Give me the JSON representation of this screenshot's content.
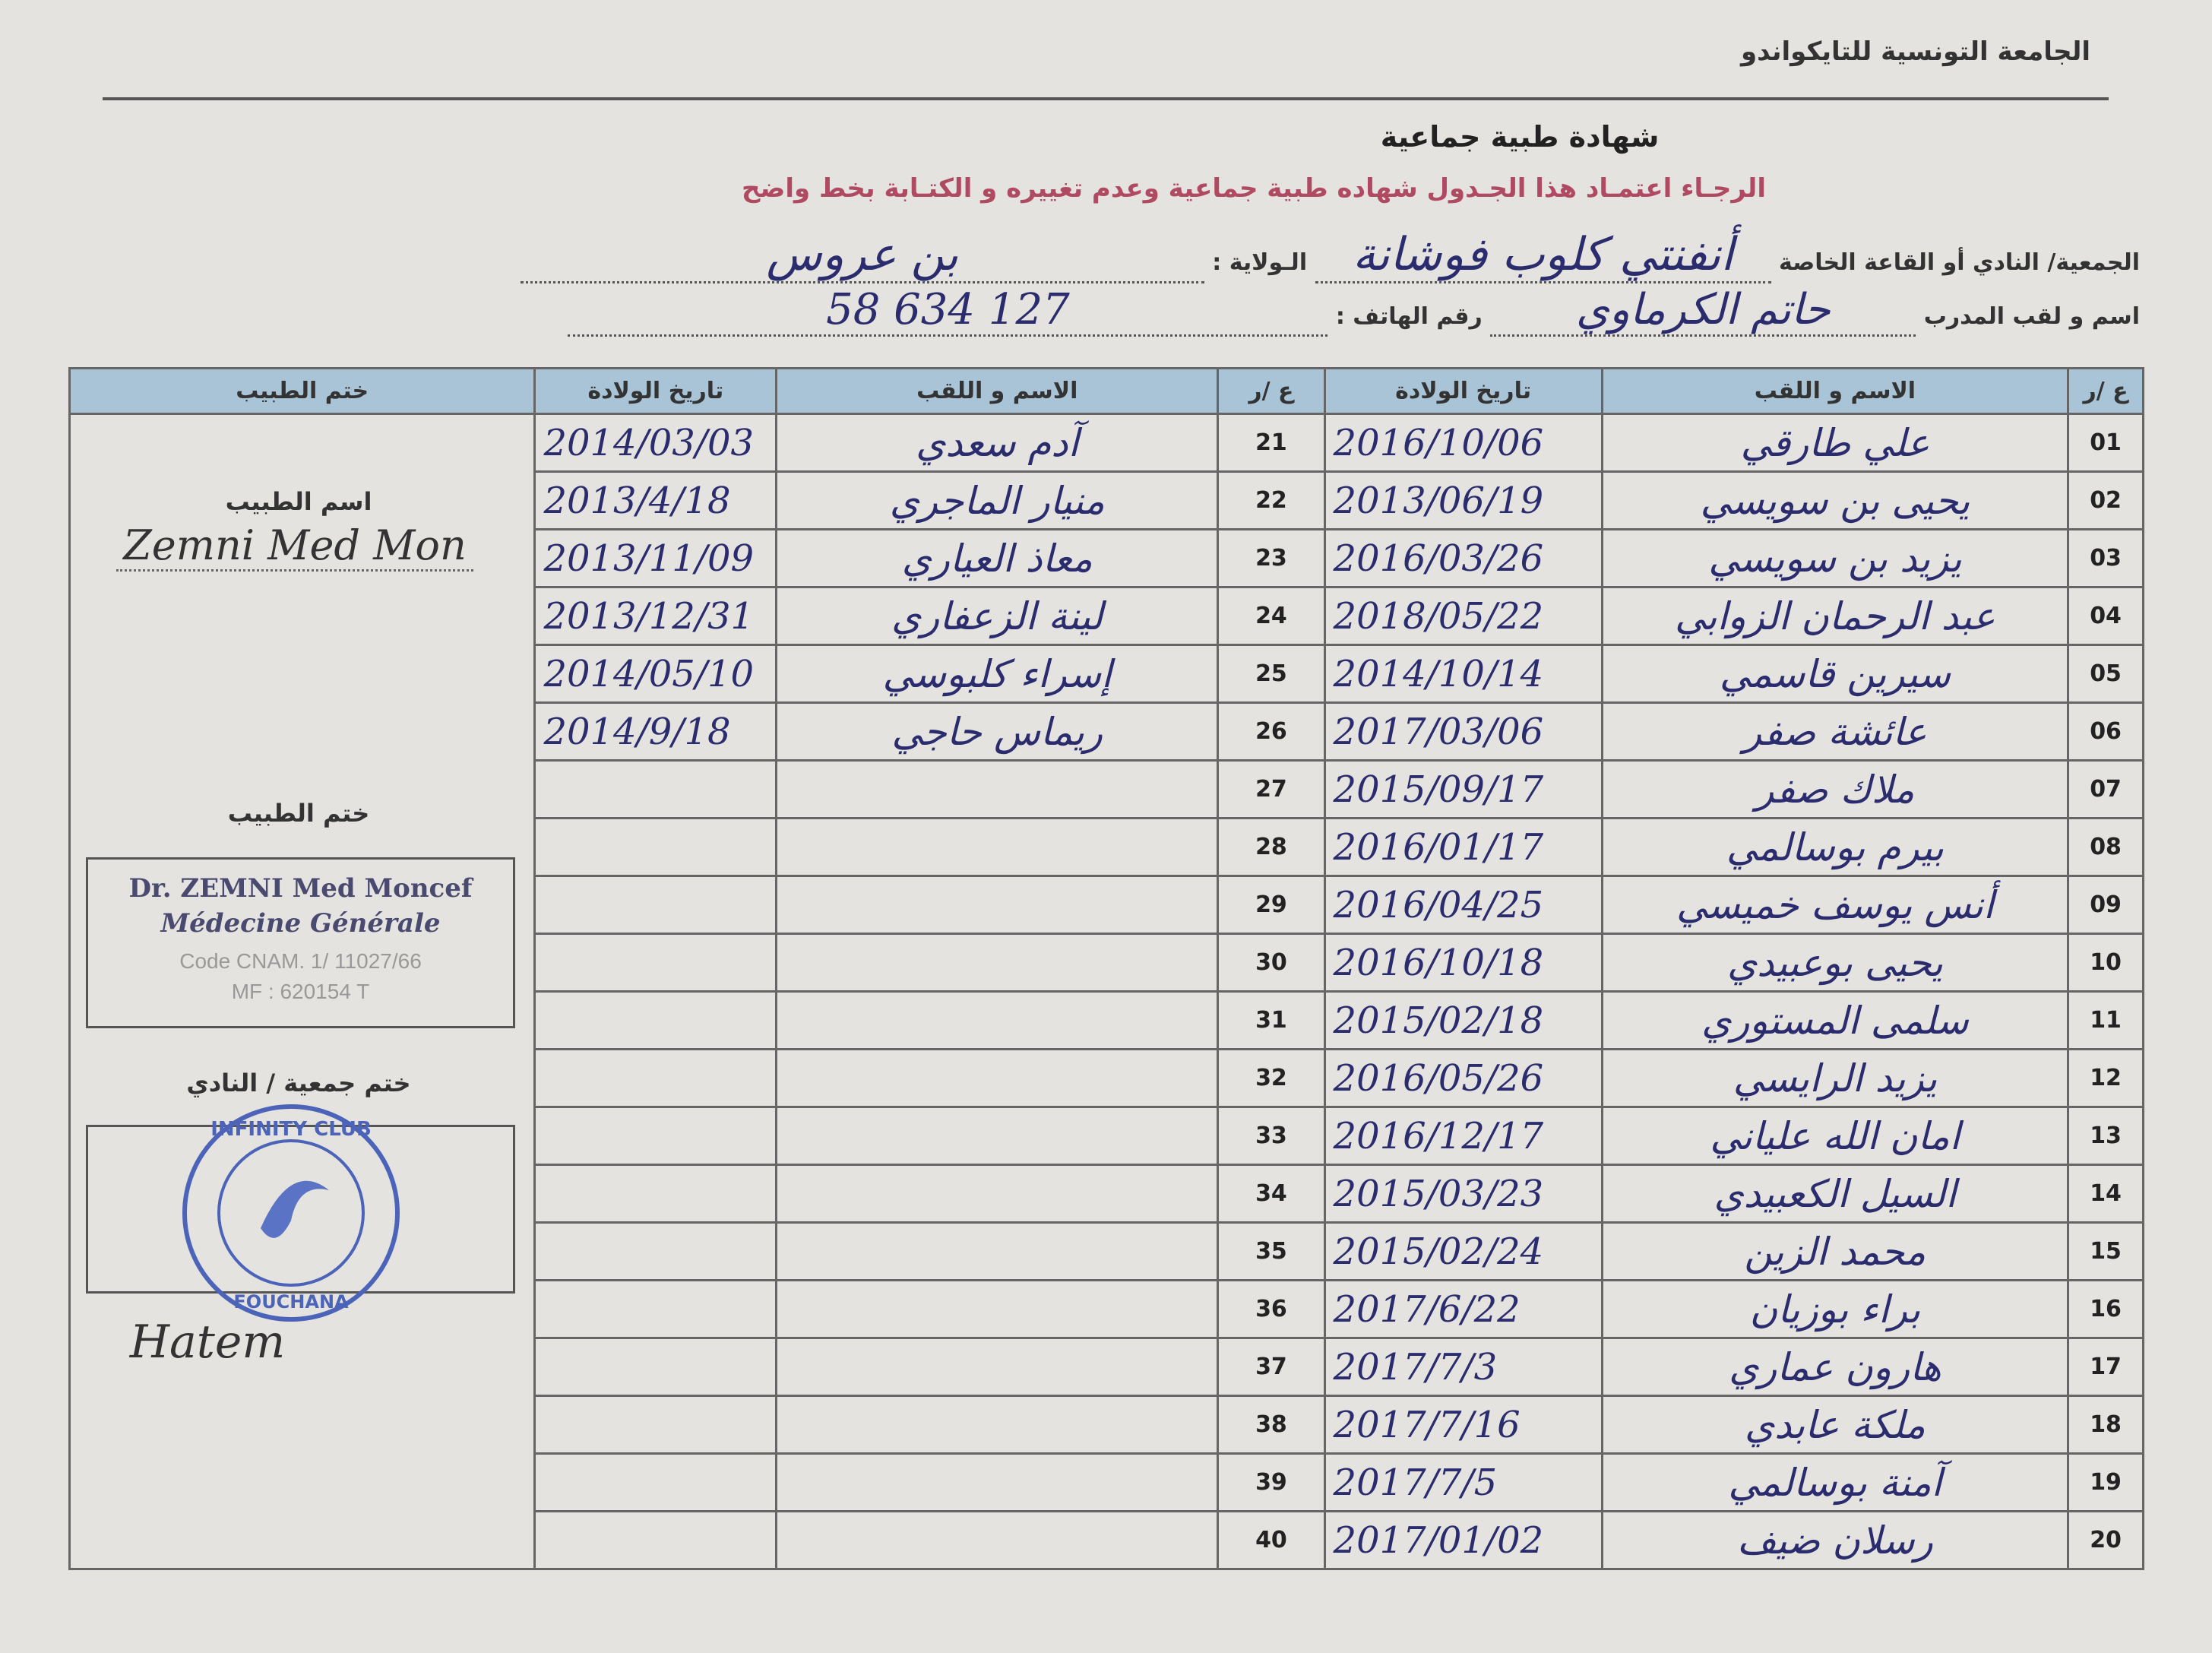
{
  "header": {
    "organization": "الجامعة التونسية للتايكواندو",
    "title": "شهادة طبية جماعية",
    "note": "الرجـاء اعتمـاد هذا الجـدول  شهاده طبية جماعية وعدم تغييره و الكتـابة بخط واضح"
  },
  "fields": {
    "club_label": "الجمعية/ النادي أو القاعة الخاصة",
    "club_value": "أنفنتي كلوب فوشانة",
    "state_label": "الـولاية :",
    "state_value": "بن عروس",
    "coach_label": "اسم و لقب المدرب",
    "coach_value": "حاتم الكرماوي",
    "phone_label": "رقم الهاتف :",
    "phone_value": "58 634 127"
  },
  "table": {
    "headers": {
      "num": "ع /ر",
      "name": "الاسم و اللقب",
      "birth": "تاريخ الولادة",
      "doctor_stamp": "ختم الطبيب"
    },
    "rows_right": [
      {
        "n": "01",
        "name": "علي طارقي",
        "date": "2016/10/06"
      },
      {
        "n": "02",
        "name": "يحيى بن سويسي",
        "date": "2013/06/19"
      },
      {
        "n": "03",
        "name": "يزيد بن سويسي",
        "date": "2016/03/26"
      },
      {
        "n": "04",
        "name": "عبد الرحمان الزوابي",
        "date": "2018/05/22"
      },
      {
        "n": "05",
        "name": "سيرين قاسمي",
        "date": "2014/10/14"
      },
      {
        "n": "06",
        "name": "عائشة صفر",
        "date": "2017/03/06"
      },
      {
        "n": "07",
        "name": "ملاك صفر",
        "date": "2015/09/17"
      },
      {
        "n": "08",
        "name": "بيرم بوسالمي",
        "date": "2016/01/17"
      },
      {
        "n": "09",
        "name": "أنس يوسف خميسي",
        "date": "2016/04/25"
      },
      {
        "n": "10",
        "name": "يحيى بوعبيدي",
        "date": "2016/10/18"
      },
      {
        "n": "11",
        "name": "سلمى المستوري",
        "date": "2015/02/18"
      },
      {
        "n": "12",
        "name": "يزيد الرايسي",
        "date": "2016/05/26"
      },
      {
        "n": "13",
        "name": "امان الله علياني",
        "date": "2016/12/17"
      },
      {
        "n": "14",
        "name": "السيل الكعبيدي",
        "date": "2015/03/23"
      },
      {
        "n": "15",
        "name": "محمد الزين",
        "date": "2015/02/24"
      },
      {
        "n": "16",
        "name": "براء بوزيان",
        "date": "2017/6/22"
      },
      {
        "n": "17",
        "name": "هارون عماري",
        "date": "2017/7/3"
      },
      {
        "n": "18",
        "name": "ملكة عابدي",
        "date": "2017/7/16"
      },
      {
        "n": "19",
        "name": "آمنة بوسالمي",
        "date": "2017/7/5"
      },
      {
        "n": "20",
        "name": "رسلان ضيف",
        "date": "2017/01/02"
      }
    ],
    "rows_left": [
      {
        "n": "21",
        "name": "آدم سعدي",
        "date": "2014/03/03"
      },
      {
        "n": "22",
        "name": "منيار الماجري",
        "date": "2013/4/18"
      },
      {
        "n": "23",
        "name": "معاذ العياري",
        "date": "2013/11/09"
      },
      {
        "n": "24",
        "name": "لينة الزعفاري",
        "date": "2013/12/31"
      },
      {
        "n": "25",
        "name": "إسراء كلبوسي",
        "date": "2014/05/10"
      },
      {
        "n": "26",
        "name": "ريماس حاجي",
        "date": "2014/9/18"
      },
      {
        "n": "27",
        "name": "",
        "date": ""
      },
      {
        "n": "28",
        "name": "",
        "date": ""
      },
      {
        "n": "29",
        "name": "",
        "date": ""
      },
      {
        "n": "30",
        "name": "",
        "date": ""
      },
      {
        "n": "31",
        "name": "",
        "date": ""
      },
      {
        "n": "32",
        "name": "",
        "date": ""
      },
      {
        "n": "33",
        "name": "",
        "date": ""
      },
      {
        "n": "34",
        "name": "",
        "date": ""
      },
      {
        "n": "35",
        "name": "",
        "date": ""
      },
      {
        "n": "36",
        "name": "",
        "date": ""
      },
      {
        "n": "37",
        "name": "",
        "date": ""
      },
      {
        "n": "38",
        "name": "",
        "date": ""
      },
      {
        "n": "39",
        "name": "",
        "date": ""
      },
      {
        "n": "40",
        "name": "",
        "date": ""
      }
    ]
  },
  "side": {
    "doctor_name_label": "اسم الطبيب",
    "doctor_signature": "Zemni Med Mon",
    "doctor_stamp_label": "ختم الطبيب",
    "stamp_lines": [
      "Dr. ZEMNI Med Moncef",
      "Médecine Générale",
      "Code CNAM. 1/ 11027/66",
      "MF : 620154 T"
    ],
    "club_stamp_label": "ختم جمعية / النادي",
    "club_stamp_text": [
      "INFINITY CLUB",
      "FOUCHANA"
    ],
    "coach_signature": "Hatem"
  }
}
